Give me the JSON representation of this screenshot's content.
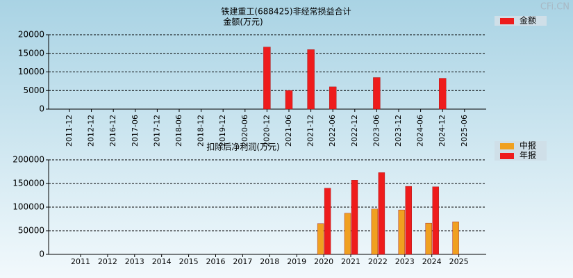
{
  "watermark": "CFi.CN",
  "chart_data": [
    {
      "type": "bar",
      "title": "铁建重工(688425)非经常损益合计",
      "subtitle": "金额(万元)",
      "categories": [
        "2011-12",
        "2012-12",
        "2016-12",
        "2017-06",
        "2017-12",
        "2018-06",
        "2018-12",
        "2019-12",
        "2020-06",
        "2020-12",
        "2021-06",
        "2021-12",
        "2022-06",
        "2022-12",
        "2023-06",
        "2023-12",
        "2024-06",
        "2024-12",
        "2025-06"
      ],
      "series": [
        {
          "name": "金额",
          "color": "#ee1c1c",
          "values": [
            null,
            null,
            null,
            null,
            null,
            null,
            null,
            null,
            null,
            16700,
            5000,
            16000,
            6000,
            null,
            8500,
            null,
            null,
            8300,
            null
          ]
        }
      ],
      "ylim": [
        0,
        20000
      ],
      "yticks": [
        0,
        5000,
        10000,
        15000,
        20000
      ],
      "grid": true
    },
    {
      "type": "bar",
      "title": "扣除后净利润(万元)",
      "categories": [
        "2011",
        "2012",
        "2013",
        "2014",
        "2015",
        "2016",
        "2017",
        "2018",
        "2019",
        "2020",
        "2021",
        "2022",
        "2023",
        "2024",
        "2025"
      ],
      "series": [
        {
          "name": "中报",
          "color": "#f0a020",
          "values": [
            null,
            null,
            null,
            null,
            null,
            null,
            null,
            null,
            null,
            65000,
            87000,
            96000,
            94000,
            66000,
            69000
          ]
        },
        {
          "name": "年报",
          "color": "#ee1c1c",
          "values": [
            null,
            null,
            null,
            null,
            null,
            null,
            null,
            null,
            null,
            140000,
            157000,
            173000,
            144000,
            143000,
            null
          ]
        }
      ],
      "ylim": [
        0,
        200000
      ],
      "yticks": [
        0,
        50000,
        100000,
        150000,
        200000
      ],
      "grid": true
    }
  ]
}
